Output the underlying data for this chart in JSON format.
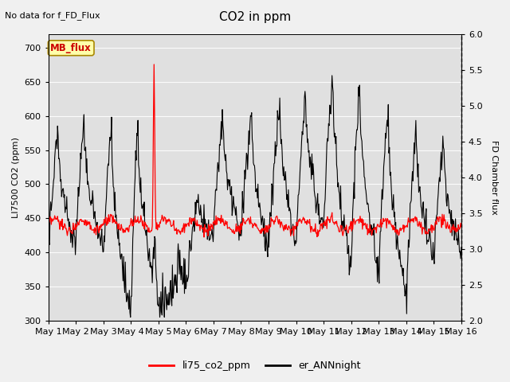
{
  "title": "CO2 in ppm",
  "top_left_text": "No data for f_FD_Flux",
  "ylabel_left": "LI7500 CO2 (ppm)",
  "ylabel_right": "FD Chamber flux",
  "ylim_left": [
    300,
    720
  ],
  "ylim_right": [
    2.0,
    6.0
  ],
  "yticks_left": [
    300,
    350,
    400,
    450,
    500,
    550,
    600,
    650,
    700
  ],
  "yticks_right": [
    2.0,
    2.5,
    3.0,
    3.5,
    4.0,
    4.5,
    5.0,
    5.5,
    6.0
  ],
  "xtick_labels": [
    "May 1",
    "May 2",
    "May 3",
    "May 4",
    "May 5",
    "May 6",
    "May 7",
    "May 8",
    "May 9",
    "May 10",
    "May 11",
    "May 12",
    "May 13",
    "May 14",
    "May 15",
    "May 16"
  ],
  "background_color": "#f0f0f0",
  "plot_bg_color": "#e0e0e0",
  "legend_items": [
    {
      "label": "li75_co2_ppm",
      "color": "red"
    },
    {
      "label": "er_ANNnight",
      "color": "black"
    }
  ],
  "mb_flux_box": {
    "text": "MB_flux",
    "text_color": "#cc0000",
    "bg_color": "#ffffaa",
    "edge_color": "#aa8800"
  }
}
